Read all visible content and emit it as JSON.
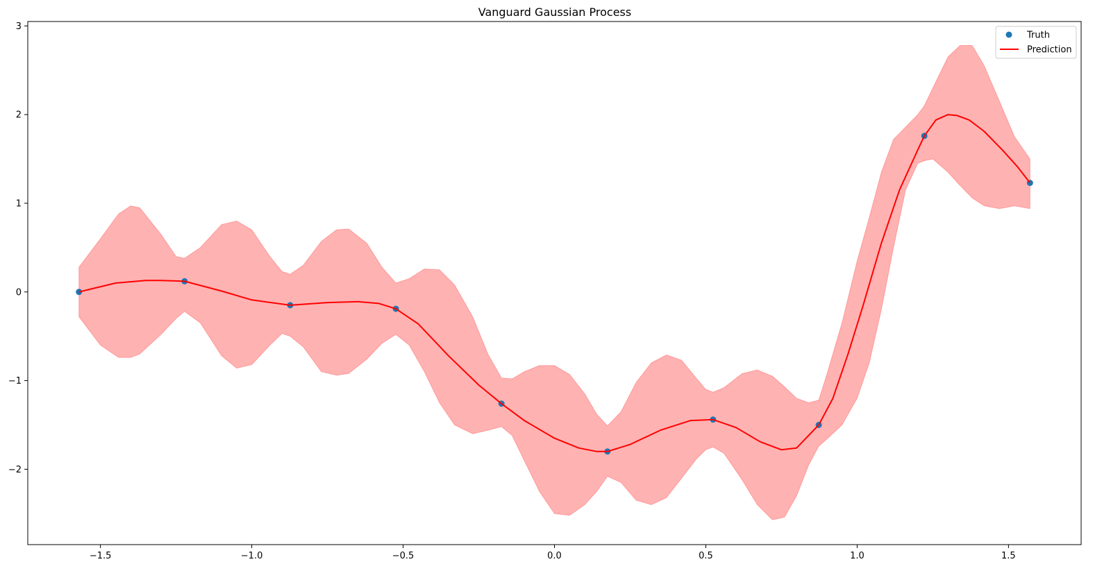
{
  "chart_data": {
    "type": "line",
    "title": "Vanguard Gaussian Process",
    "xlabel": "",
    "ylabel": "",
    "xlim": [
      -1.74,
      1.74
    ],
    "ylim": [
      -2.85,
      3.05
    ],
    "x_ticks": [
      -1.5,
      -1.0,
      -0.5,
      0.0,
      0.5,
      1.0,
      1.5
    ],
    "x_tick_labels": [
      "−1.5",
      "−1.0",
      "−0.5",
      "0.0",
      "0.5",
      "1.0",
      "1.5"
    ],
    "y_ticks": [
      -2,
      -1,
      0,
      1,
      2,
      3
    ],
    "y_tick_labels": [
      "−2",
      "−1",
      "0",
      "1",
      "2",
      "3"
    ],
    "grid": false,
    "legend_position": "top-right",
    "legend": [
      {
        "label": "Truth",
        "marker": "circle",
        "color": "#1f77b4"
      },
      {
        "label": "Prediction",
        "marker": "line",
        "color": "#ff0000"
      }
    ],
    "colors": {
      "truth": "#1f77b4",
      "prediction": "#ff0000",
      "band": "#ff0000",
      "band_opacity": 0.3
    },
    "truth": {
      "name": "Truth",
      "x": [
        -1.571,
        -1.222,
        -0.873,
        -0.524,
        -0.175,
        0.175,
        0.524,
        0.873,
        1.222,
        1.571
      ],
      "y": [
        0.0,
        0.12,
        -0.15,
        -0.19,
        -1.26,
        -1.8,
        -1.44,
        -1.5,
        1.76,
        1.23
      ]
    },
    "prediction": {
      "name": "Prediction",
      "x": [
        -1.571,
        -1.45,
        -1.35,
        -1.3,
        -1.222,
        -1.1,
        -1.0,
        -0.873,
        -0.75,
        -0.65,
        -0.58,
        -0.524,
        -0.45,
        -0.35,
        -0.25,
        -0.175,
        -0.1,
        0.0,
        0.08,
        0.14,
        0.175,
        0.25,
        0.35,
        0.45,
        0.524,
        0.6,
        0.68,
        0.75,
        0.8,
        0.873,
        0.92,
        0.97,
        1.02,
        1.08,
        1.14,
        1.2,
        1.222,
        1.26,
        1.3,
        1.33,
        1.37,
        1.42,
        1.48,
        1.53,
        1.571
      ],
      "y": [
        0.0,
        0.1,
        0.13,
        0.13,
        0.12,
        0.01,
        -0.09,
        -0.15,
        -0.12,
        -0.11,
        -0.13,
        -0.19,
        -0.36,
        -0.72,
        -1.05,
        -1.26,
        -1.45,
        -1.65,
        -1.76,
        -1.8,
        -1.8,
        -1.72,
        -1.56,
        -1.45,
        -1.44,
        -1.53,
        -1.69,
        -1.78,
        -1.76,
        -1.5,
        -1.2,
        -0.7,
        -0.15,
        0.55,
        1.15,
        1.6,
        1.76,
        1.94,
        2.0,
        1.99,
        1.94,
        1.81,
        1.6,
        1.41,
        1.23
      ]
    },
    "band": {
      "x": [
        -1.571,
        -1.5,
        -1.44,
        -1.4,
        -1.37,
        -1.3,
        -1.25,
        -1.222,
        -1.17,
        -1.1,
        -1.05,
        -1.0,
        -0.94,
        -0.9,
        -0.873,
        -0.83,
        -0.77,
        -0.72,
        -0.68,
        -0.62,
        -0.57,
        -0.524,
        -0.48,
        -0.43,
        -0.38,
        -0.33,
        -0.27,
        -0.22,
        -0.175,
        -0.14,
        -0.1,
        -0.05,
        0.0,
        0.05,
        0.1,
        0.14,
        0.175,
        0.22,
        0.27,
        0.32,
        0.37,
        0.42,
        0.47,
        0.5,
        0.524,
        0.56,
        0.62,
        0.67,
        0.72,
        0.76,
        0.8,
        0.84,
        0.873,
        0.9,
        0.95,
        1.0,
        1.04,
        1.08,
        1.12,
        1.16,
        1.2,
        1.222,
        1.25,
        1.3,
        1.34,
        1.38,
        1.42,
        1.47,
        1.52,
        1.571
      ],
      "lower": [
        -0.28,
        -0.6,
        -0.74,
        -0.74,
        -0.7,
        -0.48,
        -0.3,
        -0.22,
        -0.35,
        -0.72,
        -0.86,
        -0.82,
        -0.6,
        -0.47,
        -0.5,
        -0.62,
        -0.9,
        -0.94,
        -0.92,
        -0.76,
        -0.58,
        -0.48,
        -0.6,
        -0.9,
        -1.25,
        -1.5,
        -1.6,
        -1.56,
        -1.52,
        -1.62,
        -1.9,
        -2.25,
        -2.5,
        -2.52,
        -2.4,
        -2.25,
        -2.08,
        -2.15,
        -2.35,
        -2.4,
        -2.32,
        -2.1,
        -1.88,
        -1.78,
        -1.75,
        -1.82,
        -2.12,
        -2.4,
        -2.57,
        -2.54,
        -2.3,
        -1.95,
        -1.74,
        -1.66,
        -1.5,
        -1.2,
        -0.8,
        -0.2,
        0.5,
        1.15,
        1.45,
        1.48,
        1.5,
        1.35,
        1.2,
        1.06,
        0.97,
        0.94,
        0.97,
        0.94
      ],
      "upper": [
        0.28,
        0.6,
        0.88,
        0.97,
        0.95,
        0.65,
        0.4,
        0.38,
        0.5,
        0.76,
        0.8,
        0.7,
        0.4,
        0.23,
        0.2,
        0.3,
        0.57,
        0.7,
        0.71,
        0.55,
        0.28,
        0.1,
        0.15,
        0.26,
        0.25,
        0.08,
        -0.28,
        -0.7,
        -0.97,
        -0.98,
        -0.9,
        -0.83,
        -0.83,
        -0.93,
        -1.15,
        -1.38,
        -1.51,
        -1.35,
        -1.02,
        -0.8,
        -0.71,
        -0.77,
        -0.98,
        -1.1,
        -1.13,
        -1.08,
        -0.92,
        -0.88,
        -0.95,
        -1.07,
        -1.2,
        -1.25,
        -1.22,
        -0.93,
        -0.35,
        0.35,
        0.84,
        1.35,
        1.72,
        1.86,
        2.0,
        2.1,
        2.3,
        2.65,
        2.78,
        2.78,
        2.55,
        2.15,
        1.75,
        1.5
      ]
    }
  }
}
